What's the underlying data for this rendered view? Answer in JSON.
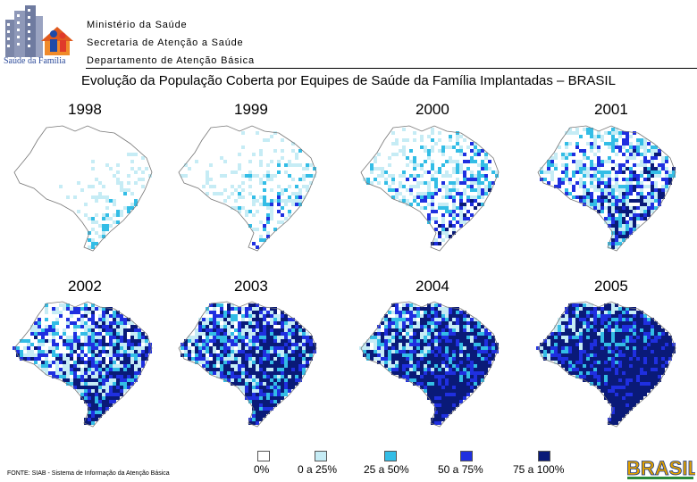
{
  "header": {
    "logo_text": "Saúde da Família",
    "org_lines": [
      "Ministério da Saúde",
      "Secretaria de Atenção a Saúde",
      "Departamento de Atenção Básica"
    ]
  },
  "title": "Evolução da População Coberta por Equipes de Saúde da Família Implantadas – BRASIL",
  "maps": [
    {
      "year": "1998",
      "coverage": 0.08
    },
    {
      "year": "1999",
      "coverage": 0.18
    },
    {
      "year": "2000",
      "coverage": 0.3
    },
    {
      "year": "2001",
      "coverage": 0.42
    },
    {
      "year": "2002",
      "coverage": 0.52
    },
    {
      "year": "2003",
      "coverage": 0.6
    },
    {
      "year": "2004",
      "coverage": 0.66
    },
    {
      "year": "2005",
      "coverage": 0.74
    }
  ],
  "legend": [
    {
      "label": "0%",
      "color": "#ffffff"
    },
    {
      "label": "0 a 25%",
      "color": "#c6ecf5"
    },
    {
      "label": "25 a 50%",
      "color": "#33bde6"
    },
    {
      "label": "50 a 75%",
      "color": "#1f2fe0"
    },
    {
      "label": "75 a 100%",
      "color": "#0a1a78"
    }
  ],
  "footer": "FONTE: SIAB - Sistema de Informação da Atenção Básica",
  "brand_logo_text": "BRASIL"
}
